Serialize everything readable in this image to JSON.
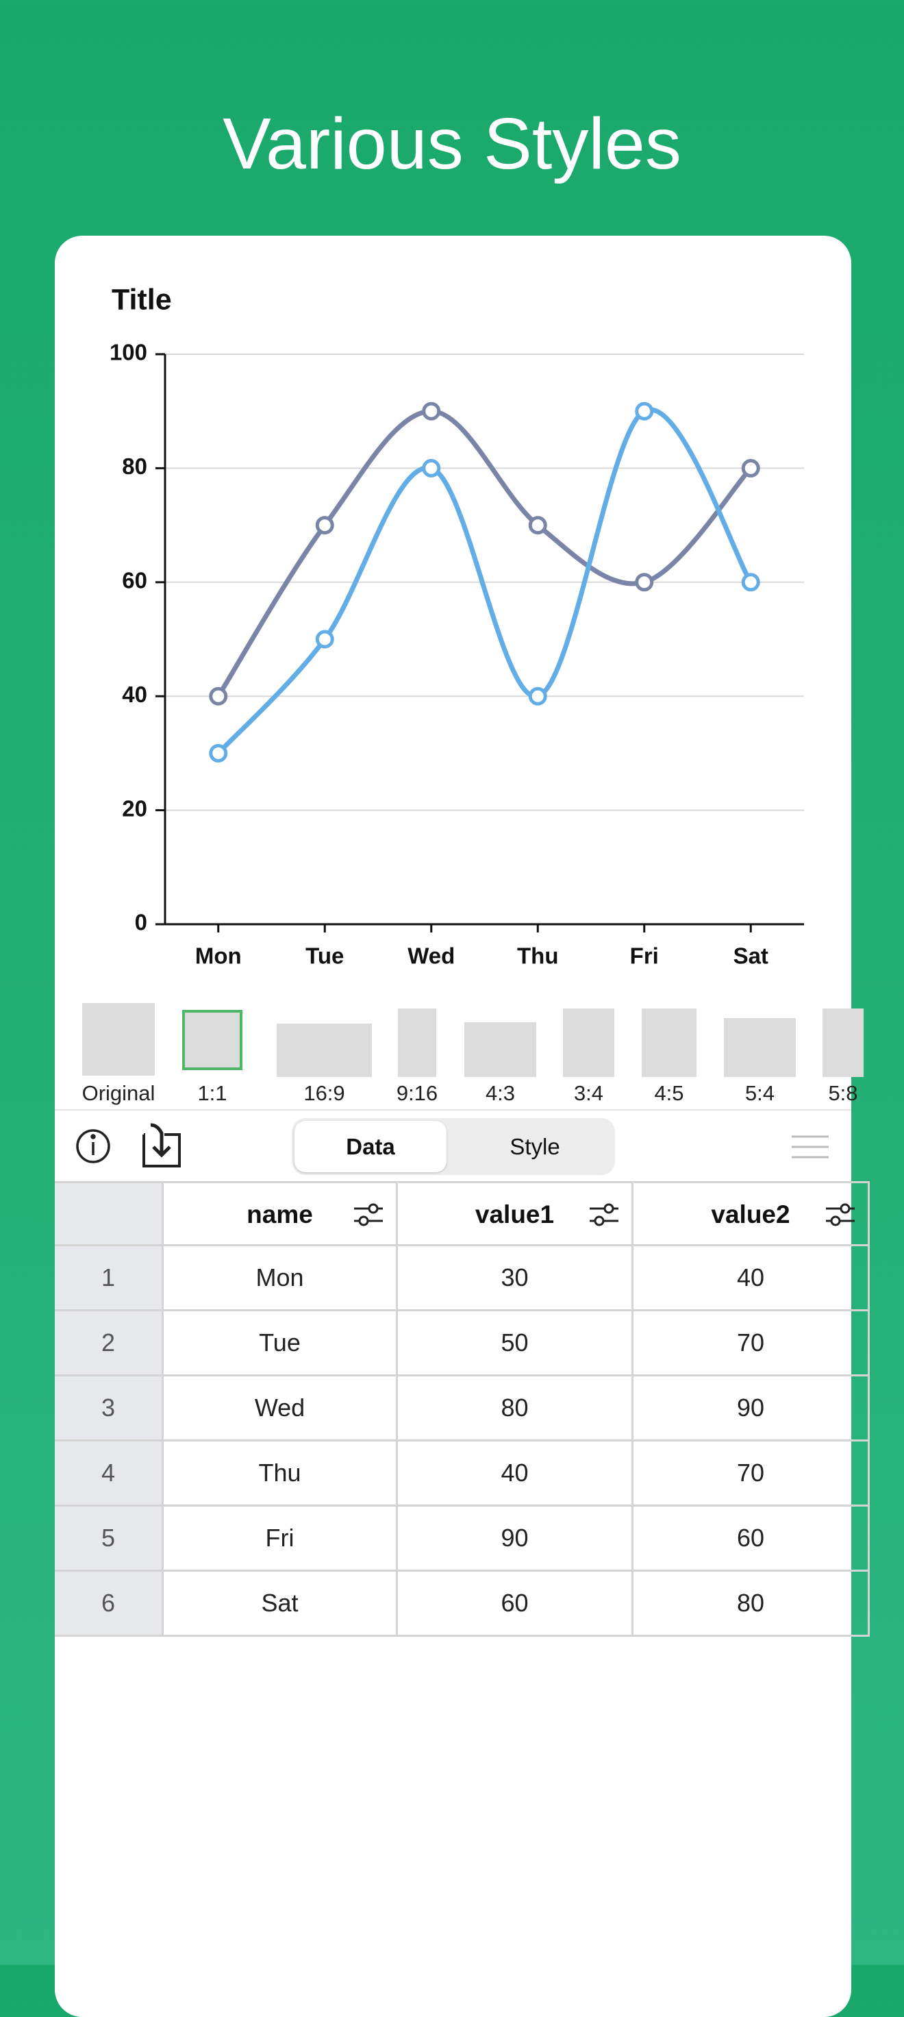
{
  "header": {
    "title": "Various Styles"
  },
  "chart_data": {
    "type": "line",
    "title": "Title",
    "categories": [
      "Mon",
      "Tue",
      "Wed",
      "Thu",
      "Fri",
      "Sat"
    ],
    "series": [
      {
        "name": "value1",
        "color": "#62ade6",
        "values": [
          30,
          50,
          80,
          40,
          90,
          60
        ]
      },
      {
        "name": "value2",
        "color": "#7a84a7",
        "values": [
          40,
          70,
          90,
          70,
          60,
          80
        ]
      }
    ],
    "ylim": [
      0,
      100
    ],
    "yticks": [
      0,
      20,
      40,
      60,
      80,
      100
    ],
    "grid": true,
    "smooth": true
  },
  "aspect_ratios": [
    "Original",
    "1:1",
    "16:9",
    "9:16",
    "4:3",
    "3:4",
    "4:5",
    "5:4",
    "5:8"
  ],
  "tabs": [
    "Data",
    "Style"
  ],
  "table": {
    "name_header": "name",
    "row_numbers": [
      1,
      2,
      3,
      4,
      5,
      6
    ]
  }
}
